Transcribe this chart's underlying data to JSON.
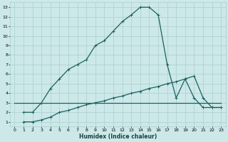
{
  "xlabel": "Humidex (Indice chaleur)",
  "bg_color": "#cce8e8",
  "grid_color": "#aacfcf",
  "line_color": "#1a6060",
  "xlim": [
    -0.5,
    23.5
  ],
  "ylim": [
    0.5,
    13.5
  ],
  "xticks": [
    0,
    1,
    2,
    3,
    4,
    5,
    6,
    7,
    8,
    9,
    10,
    11,
    12,
    13,
    14,
    15,
    16,
    17,
    18,
    19,
    20,
    21,
    22,
    23
  ],
  "yticks": [
    1,
    2,
    3,
    4,
    5,
    6,
    7,
    8,
    9,
    10,
    11,
    12,
    13
  ],
  "curve1_x": [
    1,
    2,
    3,
    4,
    5,
    6,
    7,
    8,
    9,
    10,
    11,
    12,
    13,
    14,
    15,
    16,
    17,
    18,
    19,
    20,
    21,
    22,
    23
  ],
  "curve1_y": [
    2,
    2,
    3,
    4.5,
    5.5,
    6.5,
    7,
    7.5,
    9,
    9.5,
    10.5,
    11.5,
    12.2,
    13,
    13,
    12.2,
    7,
    3.5,
    5.5,
    3.5,
    2.5,
    2.5,
    2.5
  ],
  "curve2_x": [
    1,
    2,
    3,
    4,
    5,
    6,
    7,
    8,
    9,
    10,
    11,
    12,
    13,
    14,
    15,
    16,
    17,
    18,
    19,
    20,
    21,
    22,
    23
  ],
  "curve2_y": [
    1,
    1,
    1.2,
    1.5,
    2,
    2.2,
    2.5,
    2.8,
    3.0,
    3.2,
    3.5,
    3.7,
    4.0,
    4.2,
    4.5,
    4.7,
    5.0,
    5.2,
    5.5,
    5.8,
    3.5,
    2.5,
    2.5
  ],
  "curve3_x": [
    0,
    23
  ],
  "curve3_y": [
    3,
    3
  ]
}
